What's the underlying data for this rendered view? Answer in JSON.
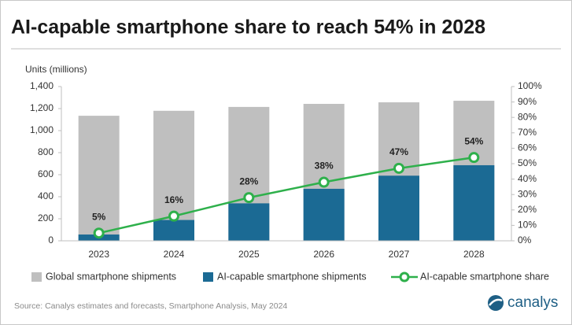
{
  "chart_data": {
    "type": "bar",
    "title": "AI-capable smartphone share to reach 54% in 2028",
    "y_axis_label": "Units (millions)",
    "categories": [
      "2023",
      "2024",
      "2025",
      "2026",
      "2027",
      "2028"
    ],
    "series": [
      {
        "name": "Global smartphone shipments",
        "type": "bar",
        "color": "#bfbfbf",
        "values": [
          1135,
          1180,
          1215,
          1243,
          1257,
          1271
        ]
      },
      {
        "name": "AI-capable smartphone shipments",
        "type": "bar",
        "color": "#1b6a94",
        "values": [
          57,
          189,
          340,
          472,
          591,
          686
        ]
      },
      {
        "name": "AI-capable smartphone share",
        "type": "line",
        "axis": "y2",
        "color": "#2eb04b",
        "values": [
          5,
          16,
          28,
          38,
          47,
          54
        ],
        "value_labels": [
          "5%",
          "16%",
          "28%",
          "38%",
          "47%",
          "54%"
        ]
      }
    ],
    "ylim": [
      0,
      1400
    ],
    "yticks": [
      0,
      200,
      400,
      600,
      800,
      {
        "value": 1000,
        "label": "1,000"
      },
      {
        "value": 1200,
        "label": "1,200"
      },
      {
        "value": 1400,
        "label": "1,400"
      }
    ],
    "y2lim": [
      0,
      100
    ],
    "y2ticks": [
      {
        "value": 0,
        "label": "0%"
      },
      {
        "value": 10,
        "label": "10%"
      },
      {
        "value": 20,
        "label": "20%"
      },
      {
        "value": 30,
        "label": "30%"
      },
      {
        "value": 40,
        "label": "40%"
      },
      {
        "value": 50,
        "label": "50%"
      },
      {
        "value": 60,
        "label": "60%"
      },
      {
        "value": 70,
        "label": "70%"
      },
      {
        "value": 80,
        "label": "80%"
      },
      {
        "value": 90,
        "label": "90%"
      },
      {
        "value": 100,
        "label": "100%"
      }
    ],
    "legend": "bottom",
    "source": "Source: Canalys estimates and forecasts, Smartphone Analysis, May 2024",
    "brand": "canalys"
  }
}
